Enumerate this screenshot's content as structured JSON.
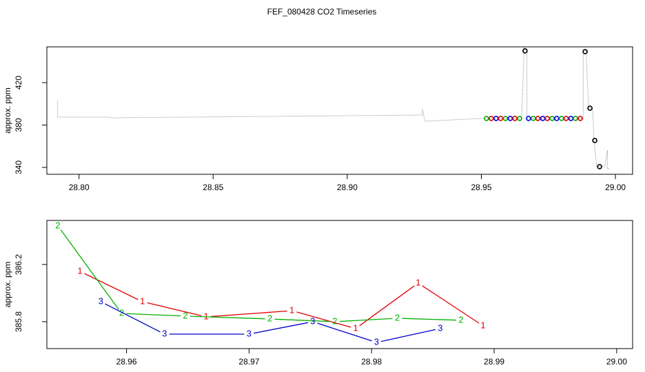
{
  "chart_data": [
    {
      "type": "line",
      "title": "FEF_080428  CO2 Timeseries",
      "y_label": "approx. ppm",
      "xlim": [
        28.788,
        29.0064
      ],
      "ylim": [
        333.5,
        453.8
      ],
      "xticks": [
        {
          "value": 28.8,
          "label": "28.80"
        },
        {
          "value": 28.85,
          "label": "28.85"
        },
        {
          "value": 28.9,
          "label": "28.90"
        },
        {
          "value": 28.95,
          "label": "28.95"
        },
        {
          "value": 29.0,
          "label": "29.00"
        }
      ],
      "yticks": [
        340,
        380,
        420
      ],
      "series": [
        {
          "style": "line",
          "color": "#999999",
          "x": [
            28.792,
            28.792,
            28.811,
            28.812,
            28.867,
            28.928,
            28.928,
            28.929,
            28.95,
            28.965,
            28.966,
            28.967,
            28.967,
            28.967,
            28.988,
            28.988,
            28.989,
            28.99,
            28.9915,
            28.992,
            28.993,
            28.996,
            28.997,
            28.997,
            28.998
          ],
          "values": [
            402.4,
            387.5,
            387.5,
            386.8,
            388.1,
            389.4,
            395.3,
            383.6,
            386.2,
            386.2,
            453,
            450,
            438,
            386.2,
            386.2,
            450,
            450,
            395.9,
            395.9,
            365.4,
            340.7,
            340.7,
            356.3,
            338.7,
            338.7
          ]
        },
        {
          "style": "points",
          "color": [
            "#00b000",
            "#e00000",
            "#0000e0",
            "#e00000",
            "#00b000",
            "#0000e0",
            "#e00000",
            "#00b000",
            "#0000e0",
            "#00b000",
            "#e00000",
            "#0000e0",
            "#e00000",
            "#00b000",
            "#0000e0",
            "#00b000",
            "#e00000",
            "#0000e0",
            "#00b000",
            "#e00000"
          ],
          "x": [
            28.9519,
            28.9537,
            28.9555,
            28.9572,
            28.959,
            28.9608,
            28.9625,
            28.9643,
            28.9676,
            28.9694,
            28.9711,
            28.9729,
            28.9746,
            28.9764,
            28.9781,
            28.9799,
            28.9816,
            28.9834,
            28.9851,
            28.9869
          ],
          "values": [
            386.2,
            386.2,
            386.2,
            386.2,
            386.2,
            386.2,
            386.2,
            386.2,
            386.2,
            386.2,
            386.2,
            386.2,
            386.2,
            386.2,
            386.2,
            386.2,
            386.2,
            386.2,
            386.2,
            386.2
          ]
        },
        {
          "style": "points",
          "color": "#000000",
          "x": [
            28.9663,
            28.9887,
            28.9905,
            28.9923,
            28.9941
          ],
          "values": [
            450,
            449.3,
            395.9,
            365.4,
            340.7
          ]
        }
      ]
    },
    {
      "type": "line",
      "y_label": "approx. ppm",
      "xlim": [
        28.9535,
        29.0013
      ],
      "ylim": [
        385.612,
        386.508
      ],
      "xticks": [
        28.96,
        28.97,
        28.98,
        28.99,
        {
          "value": 29.0,
          "label": "29.00"
        }
      ],
      "yticks": [
        385.8,
        386.2
      ],
      "series": [
        {
          "style": "labeled",
          "name": "1",
          "color": "#e00000",
          "x": [
            28.9562,
            28.9613,
            28.9665,
            28.9735,
            28.9787,
            28.9838,
            28.9891
          ],
          "values": [
            386.152,
            385.94,
            385.834,
            385.877,
            385.752,
            386.07,
            385.771
          ]
        },
        {
          "style": "labeled",
          "name": "2",
          "color": "#00b000",
          "x": [
            28.9544,
            28.9596,
            28.9648,
            28.9717,
            28.977,
            28.9821,
            28.9873
          ],
          "values": [
            386.47,
            385.858,
            385.839,
            385.819,
            385.8,
            385.824,
            385.81
          ]
        },
        {
          "style": "labeled",
          "name": "3",
          "color": "#0000c8",
          "x": [
            28.9579,
            28.9631,
            28.97,
            28.9752,
            28.9804,
            28.9856
          ],
          "values": [
            385.94,
            385.713,
            385.713,
            385.8,
            385.655,
            385.752
          ]
        }
      ]
    }
  ]
}
